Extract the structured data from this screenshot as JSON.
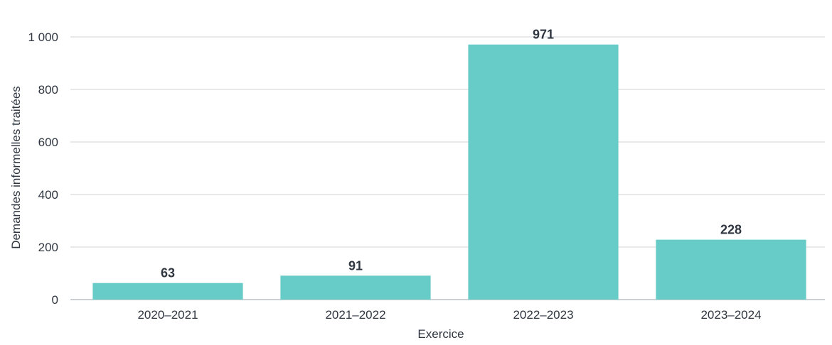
{
  "chart_data": {
    "type": "bar",
    "categories": [
      "2020–2021",
      "2021–2022",
      "2022–2023",
      "2023–2024"
    ],
    "values": [
      63,
      91,
      971,
      228
    ],
    "value_labels": [
      "63",
      "91",
      "971",
      "228"
    ],
    "title": "",
    "xlabel": "Exercice",
    "ylabel": "Demandes informelles traitées",
    "ylim": [
      0,
      1000
    ],
    "yticks": [
      0,
      200,
      400,
      600,
      800,
      1000
    ],
    "ytick_labels": [
      "0",
      "200",
      "400",
      "600",
      "800",
      "1 000"
    ],
    "grid": true,
    "legend": "none",
    "bar_color": "#67cbc8",
    "text_color": "#2f3640",
    "grid_color": "#cfd3d7"
  }
}
